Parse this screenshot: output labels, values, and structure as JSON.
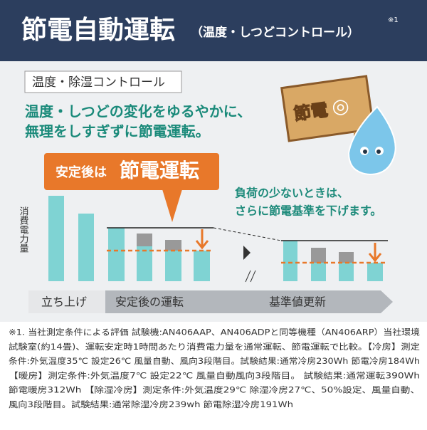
{
  "header": {
    "title": "節電自動運転",
    "subtitle": "（温度・しつどコントロール）",
    "note_mark": "※1"
  },
  "section_label": "温度・除湿コントロール",
  "headline": [
    "温度・しつどの変化をゆるやかに、",
    "無理をしすぎずに節電運転。"
  ],
  "sign": {
    "text": "節電",
    "symbol": "◎"
  },
  "callout": {
    "prefix": "安定後は",
    "emphasis": "節電運転"
  },
  "callout2": [
    "負荷の少ないときは、",
    "さらに節電基準を下げます。"
  ],
  "y_axis_label": "消費電力量",
  "phases": [
    "立ち上げ",
    "安定後の運転",
    "基準値更新"
  ],
  "footnote": [
    "※1. 当社測定条件による評価 試験機:AN406AAP、AN406ADPと同等機種（AN406ARP）当社環境",
    "試験室(約14畳)、運転安定時1時間あたり消費電力量を通常運転、節電運転で比較。【冷房】測定",
    "条件:外気温度35℃ 設定26℃ 風量自動、風向3段階目。試験結果:通常冷房230Wh 節電冷房184Wh",
    "【暖房】測定条件:外気温度7℃ 設定22℃ 風量自動風向3段階目。 試験結果:通常運転390Wh",
    "節電暖房312Wh 【除湿冷房】測定条件:外気温度29℃ 除湿冷房27℃、50%設定、風量自動、",
    "風向3段階目。試験結果:通常除湿冷房239wh 節電除湿冷房191Wh"
  ]
}
